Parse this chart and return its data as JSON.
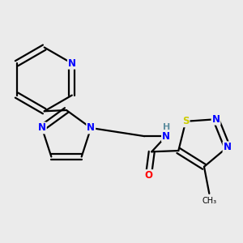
{
  "background_color": "#ebebeb",
  "bond_color": "#000000",
  "atom_colors": {
    "N": "#0000ff",
    "S": "#cccc00",
    "O": "#ff0000",
    "C": "#000000",
    "H": "#5f8fa0"
  },
  "figsize": [
    3.0,
    3.0
  ],
  "dpi": 100,
  "lw": 1.6,
  "fs": 8.5,
  "perp": 0.055
}
